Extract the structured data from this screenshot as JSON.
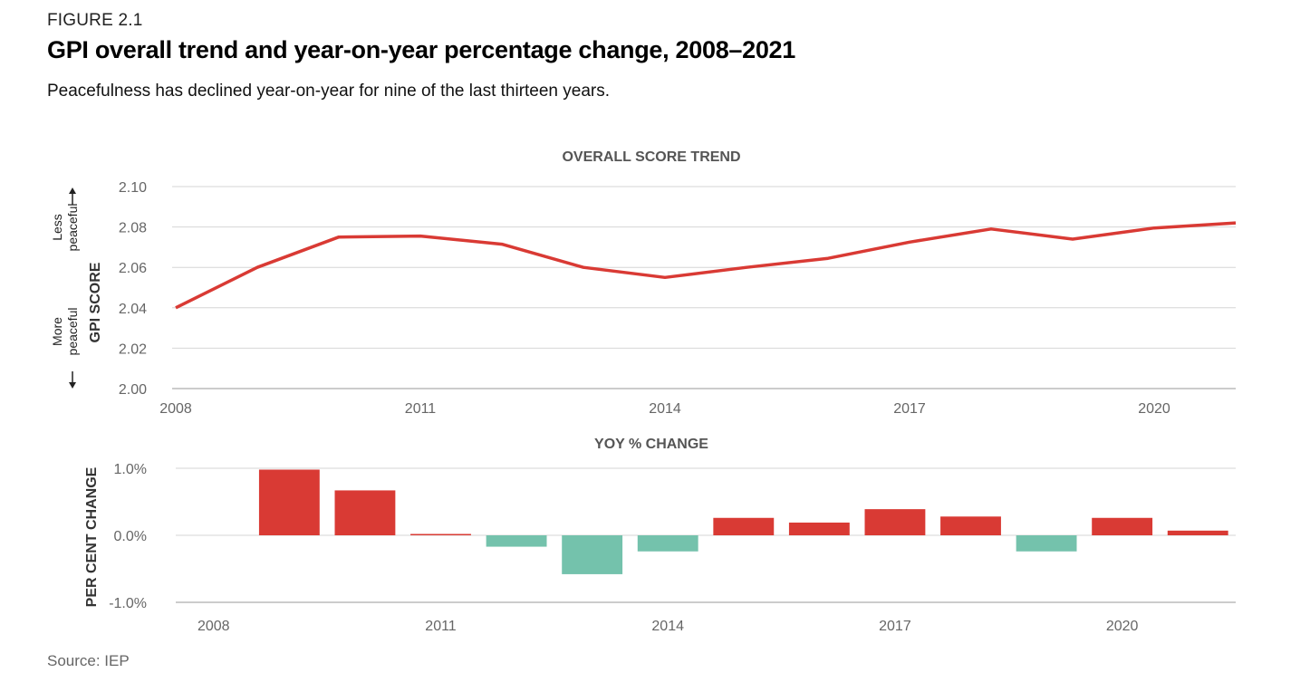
{
  "header": {
    "figure_label": "FIGURE 2.1",
    "title": "GPI overall trend and year-on-year percentage change, 2008–2021",
    "subtitle": "Peacefulness has declined year-on-year for nine of the last thirteen years."
  },
  "footer": {
    "source": "Source: IEP"
  },
  "colors": {
    "line": "#d93a34",
    "positive": "#d93a34",
    "negative": "#74c2ac",
    "grid": "#d6d6d6",
    "tick": "#666666"
  },
  "chart_data": [
    {
      "type": "line",
      "title": "OVERALL SCORE TREND",
      "ylabel": "GPI SCORE",
      "y_direction_labels": {
        "top": [
          "Less",
          "peaceful"
        ],
        "bottom": [
          "More",
          "peaceful"
        ]
      },
      "x": [
        2008,
        2009,
        2010,
        2011,
        2012,
        2013,
        2014,
        2015,
        2016,
        2017,
        2018,
        2019,
        2020,
        2021
      ],
      "values": [
        2.04,
        2.06,
        2.075,
        2.0755,
        2.0715,
        2.06,
        2.055,
        2.06,
        2.0645,
        2.0725,
        2.079,
        2.074,
        2.0795,
        2.082
      ],
      "xticks": [
        "2008",
        "2011",
        "2014",
        "2017",
        "2020"
      ],
      "yticks": [
        "2.10",
        "2.08",
        "2.06",
        "2.04",
        "2.02",
        "2.00"
      ],
      "ylim": [
        2.0,
        2.1
      ],
      "grid": true
    },
    {
      "type": "bar",
      "title": "YOY % CHANGE",
      "ylabel": "PER CENT CHANGE",
      "x": [
        2008,
        2009,
        2010,
        2011,
        2012,
        2013,
        2014,
        2015,
        2016,
        2017,
        2018,
        2019,
        2020,
        2021
      ],
      "values": [
        0.0,
        0.98,
        0.67,
        0.02,
        -0.17,
        -0.58,
        -0.24,
        0.26,
        0.19,
        0.39,
        0.28,
        -0.24,
        0.26,
        0.07
      ],
      "xticks": [
        "2008",
        "2011",
        "2014",
        "2017",
        "2020"
      ],
      "yticks": [
        "1.0%",
        "0.0%",
        "-1.0%"
      ],
      "ylim": [
        -1.0,
        1.0
      ],
      "grid": true
    }
  ]
}
